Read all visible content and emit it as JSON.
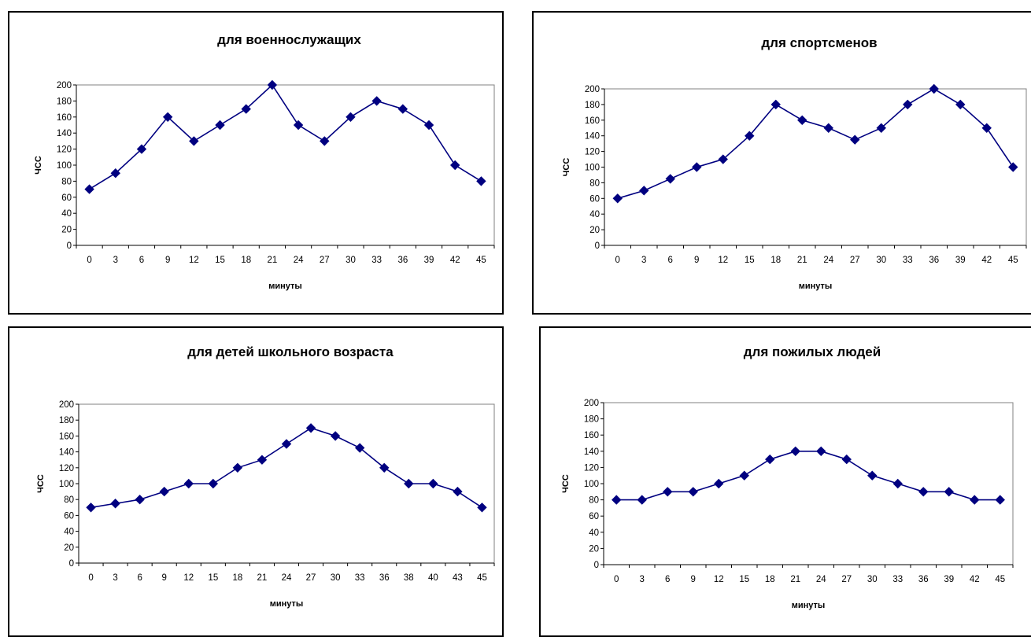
{
  "chart_data": [
    {
      "type": "line",
      "title": "для военнослужащих",
      "xlabel": "минуты",
      "ylabel": "ЧСС",
      "ylim": [
        0,
        200
      ],
      "yticks": [
        "0",
        "20",
        "40",
        "60",
        "80",
        "100",
        "120",
        "140",
        "160",
        "180",
        "200"
      ],
      "categories": [
        "0",
        "3",
        "6",
        "9",
        "12",
        "15",
        "18",
        "21",
        "24",
        "27",
        "30",
        "33",
        "36",
        "39",
        "42",
        "45"
      ],
      "values": [
        70,
        90,
        120,
        160,
        130,
        150,
        170,
        200,
        150,
        130,
        160,
        180,
        170,
        150,
        100,
        80
      ],
      "grid": false,
      "series_color": "#000080"
    },
    {
      "type": "line",
      "title": "для спортсменов",
      "xlabel": "минуты",
      "ylabel": "ЧСС",
      "ylim": [
        0,
        200
      ],
      "yticks": [
        "0",
        "20",
        "40",
        "60",
        "80",
        "100",
        "120",
        "140",
        "160",
        "180",
        "200"
      ],
      "categories": [
        "0",
        "3",
        "6",
        "9",
        "12",
        "15",
        "18",
        "21",
        "24",
        "27",
        "30",
        "33",
        "36",
        "39",
        "42",
        "45"
      ],
      "values": [
        60,
        70,
        85,
        100,
        110,
        140,
        180,
        160,
        150,
        135,
        150,
        180,
        200,
        180,
        150,
        100
      ],
      "grid": false,
      "series_color": "#000080"
    },
    {
      "type": "line",
      "title": "для детей школьного возраста",
      "xlabel": "минуты",
      "ylabel": "ЧСС",
      "ylim": [
        0,
        200
      ],
      "yticks": [
        "0",
        "20",
        "40",
        "60",
        "80",
        "100",
        "120",
        "140",
        "160",
        "180",
        "200"
      ],
      "categories": [
        "0",
        "3",
        "6",
        "9",
        "12",
        "15",
        "18",
        "21",
        "24",
        "27",
        "30",
        "33",
        "36",
        "38",
        "40",
        "43",
        "45"
      ],
      "values": [
        70,
        75,
        80,
        90,
        100,
        100,
        120,
        130,
        150,
        170,
        160,
        145,
        120,
        100,
        100,
        90,
        70
      ],
      "grid": false,
      "series_color": "#000080"
    },
    {
      "type": "line",
      "title": "для пожилых людей",
      "xlabel": "минуты",
      "ylabel": "ЧСС",
      "ylim": [
        0,
        200
      ],
      "yticks": [
        "0",
        "20",
        "40",
        "60",
        "80",
        "100",
        "120",
        "140",
        "160",
        "180",
        "200"
      ],
      "categories": [
        "0",
        "3",
        "6",
        "9",
        "12",
        "15",
        "18",
        "21",
        "24",
        "27",
        "30",
        "33",
        "36",
        "39",
        "42",
        "45"
      ],
      "values": [
        80,
        80,
        90,
        90,
        100,
        110,
        130,
        140,
        140,
        130,
        110,
        100,
        90,
        90,
        80,
        80
      ],
      "grid": false,
      "series_color": "#000080"
    }
  ]
}
